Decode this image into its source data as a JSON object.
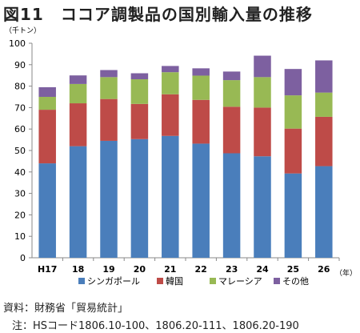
{
  "title": "図11　ココア調製品の国別輸入量の推移",
  "source": "資料：財務省「貿易統計」",
  "note": "注：HSコード1806.10-100、1806.20-111、1806.20-190",
  "chart_data": {
    "type": "bar",
    "stacked": true,
    "categories": [
      "H17",
      "18",
      "19",
      "20",
      "21",
      "22",
      "23",
      "24",
      "25",
      "26"
    ],
    "ylabel": "（千トン）",
    "xlabel": "（年）",
    "ylim": [
      0,
      100
    ],
    "yticks": [
      0,
      10,
      20,
      30,
      40,
      50,
      60,
      70,
      80,
      90,
      100
    ],
    "grid": false,
    "legend_position": "bottom",
    "series": [
      {
        "name": "シンガポール",
        "color": "#4a7ebb",
        "values": [
          44,
          52,
          54.5,
          55.3,
          56.8,
          53.2,
          48.7,
          47.3,
          39.3,
          42.7
        ]
      },
      {
        "name": "韓国",
        "color": "#be4b48",
        "values": [
          25,
          20,
          19.5,
          16.4,
          19.4,
          20.4,
          21.7,
          22.7,
          20.9,
          23
        ]
      },
      {
        "name": "マレーシア",
        "color": "#98b954",
        "values": [
          6,
          9,
          10.2,
          11.5,
          10.3,
          11.3,
          12.4,
          14.2,
          15.5,
          11.3
        ]
      },
      {
        "name": "その他",
        "color": "#7d60a0",
        "values": [
          4.5,
          4,
          3.3,
          2.8,
          2.9,
          3.4,
          4,
          10,
          12.3,
          15
        ]
      }
    ]
  }
}
